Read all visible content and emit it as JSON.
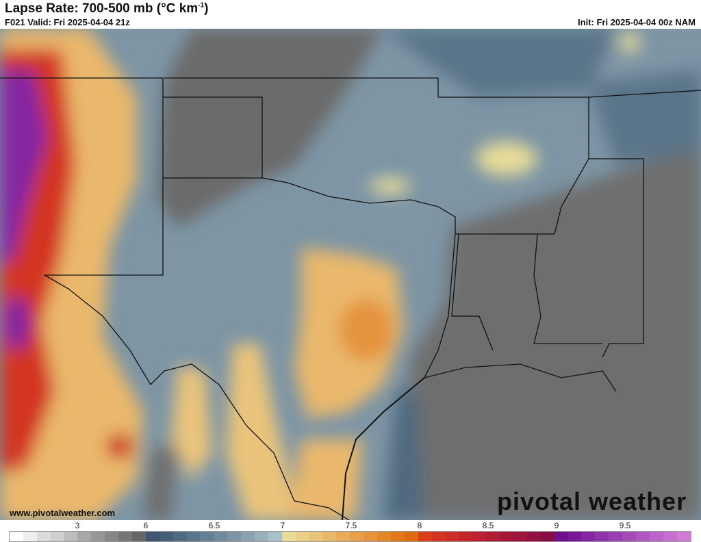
{
  "header": {
    "title_main": "Lapse Rate: 700-500 mb (°C km",
    "title_sup": "-1",
    "title_end": ")",
    "valid": "F021 Valid: Fri 2025-04-04 21z",
    "init": "Init: Fri 2025-04-04 00z NAM"
  },
  "footer": {
    "url": "www.pivotalweather.com",
    "logo": "pivotal weather"
  },
  "colorbar": {
    "ticks": [
      "3",
      "6",
      "6.5",
      "7",
      "7.5",
      "8",
      "8.5",
      "9",
      "9.5"
    ],
    "colors": [
      "#ffffff",
      "#eeeeee",
      "#dcdcdc",
      "#cfcfcf",
      "#bdbdbd",
      "#a8a8a8",
      "#979797",
      "#868686",
      "#777777",
      "#666666",
      "#3d5770",
      "#465f77",
      "#506a80",
      "#5a7489",
      "#657f93",
      "#71899c",
      "#7d95a5",
      "#8ba2b0",
      "#98b0bb",
      "#a8c1c8",
      "#e8dc98",
      "#e9cf88",
      "#eac47c",
      "#e9b86c",
      "#e8ab5b",
      "#e79f4c",
      "#e5933c",
      "#e2862c",
      "#e0791c",
      "#de6c0c",
      "#d9401a",
      "#d33520",
      "#cc2d24",
      "#c42628",
      "#bb2030",
      "#b01c34",
      "#a51838",
      "#9c153c",
      "#921040",
      "#870c44",
      "#6e0f90",
      "#7a1a98",
      "#8526a0",
      "#9032a8",
      "#9b3eb0",
      "#a64ab8",
      "#b156c0",
      "#bc62c8",
      "#c76ed0",
      "#d27ad8"
    ]
  }
}
